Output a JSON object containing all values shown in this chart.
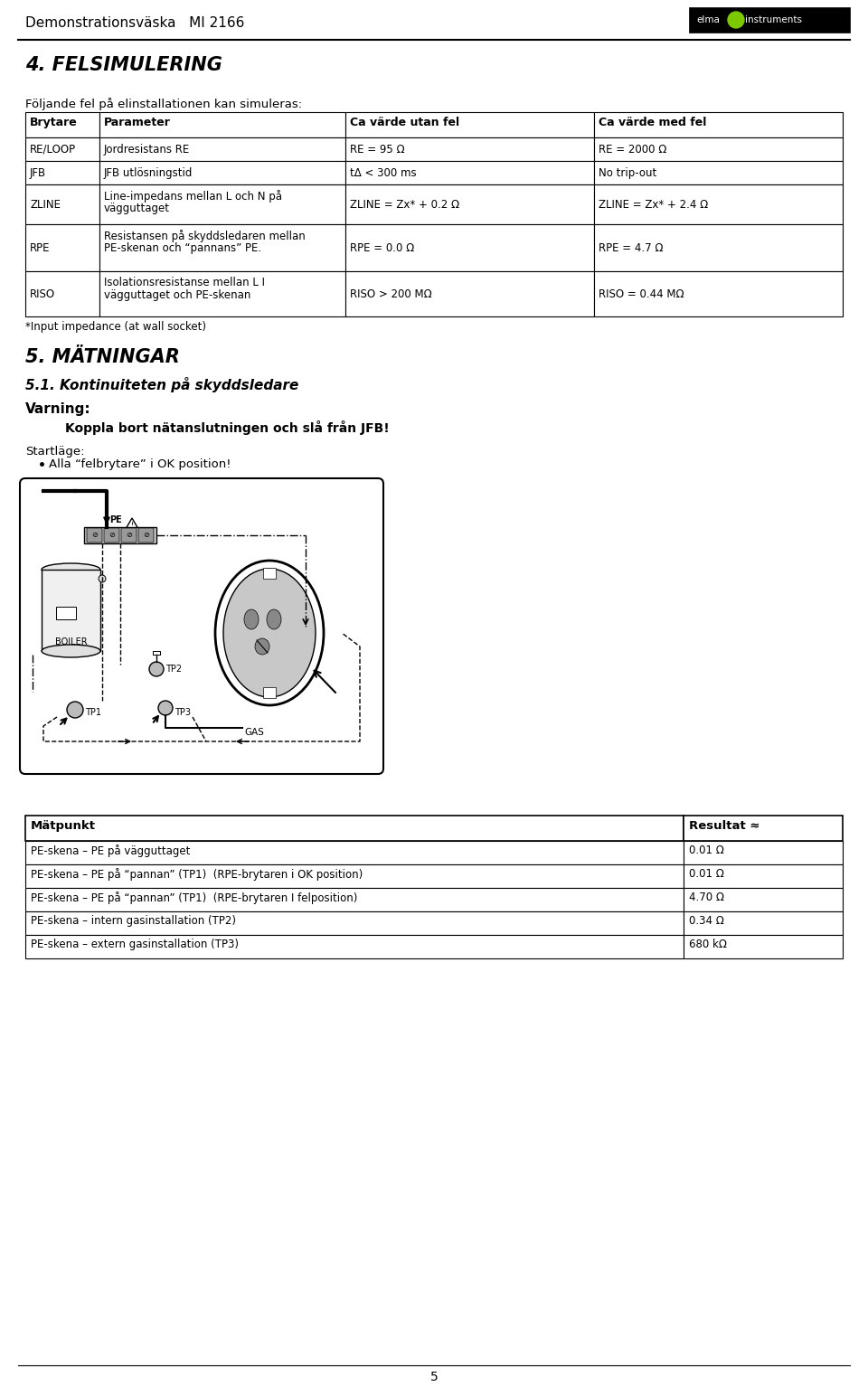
{
  "page_title": "Demonstrationsväska   MI 2166",
  "section4_title": "4. FELSIMULERING",
  "section4_intro": "Följande fel på elinstallationen kan simuleras:",
  "table_headers": [
    "Brytare",
    "Parameter",
    "Ca värde utan fel",
    "Ca värde med fel"
  ],
  "table_rows": [
    [
      "RE/LOOP",
      "Jordresistans RE",
      "RE = 95 Ω",
      "RE = 2000 Ω"
    ],
    [
      "JFB",
      "JFB utlösningstid",
      "tΔ < 300 ms",
      "No trip-out"
    ],
    [
      "ZLINE",
      "Line-impedans mellan L och N på\nvägguttaget",
      "ZLINE = Zx* + 0.2 Ω",
      "ZLINE = Zx* + 2.4 Ω"
    ],
    [
      "RPE",
      "Resistansen på skyddsledaren mellan\nPE-skenan och “pannans” PE.",
      "RPE = 0.0 Ω",
      "RPE = 4.7 Ω"
    ],
    [
      "RISO",
      "Isolationsresistanse mellan L I\nvägguttaget och PE-skenan",
      "RISO > 200 MΩ",
      "RISO = 0.44 MΩ"
    ]
  ],
  "footnote": "*Input impedance (at wall socket)",
  "section5_title": "5. MÄTNINGAR",
  "section51_title": "5.1. Kontinuiteten på skyddsledare",
  "varning_label": "Varning:",
  "varning_text": "Koppla bort nätanslutningen och slå från JFB!",
  "startlage_label": "Startläge:",
  "startlage_bullet": "Alla “felbrytare” i OK position!",
  "results_table_headers": [
    "Mätpunkt",
    "Resultat ≈"
  ],
  "results_table_rows": [
    [
      "PE-skena – PE på vägguttaget",
      "0.01 Ω"
    ],
    [
      "PE-skena – PE på “pannan” (TP1)  (RPE-brytaren i OK position)",
      "0.01 Ω"
    ],
    [
      "PE-skena – PE på “pannan” (TP1)  (RPE-brytaren I felposition)",
      "4.70 Ω"
    ],
    [
      "PE-skena – intern gasinstallation (TP2)",
      "0.34 Ω"
    ],
    [
      "PE-skena – extern gasinstallation (TP3)",
      "680 kΩ"
    ]
  ],
  "page_number": "5",
  "background_color": "#ffffff"
}
